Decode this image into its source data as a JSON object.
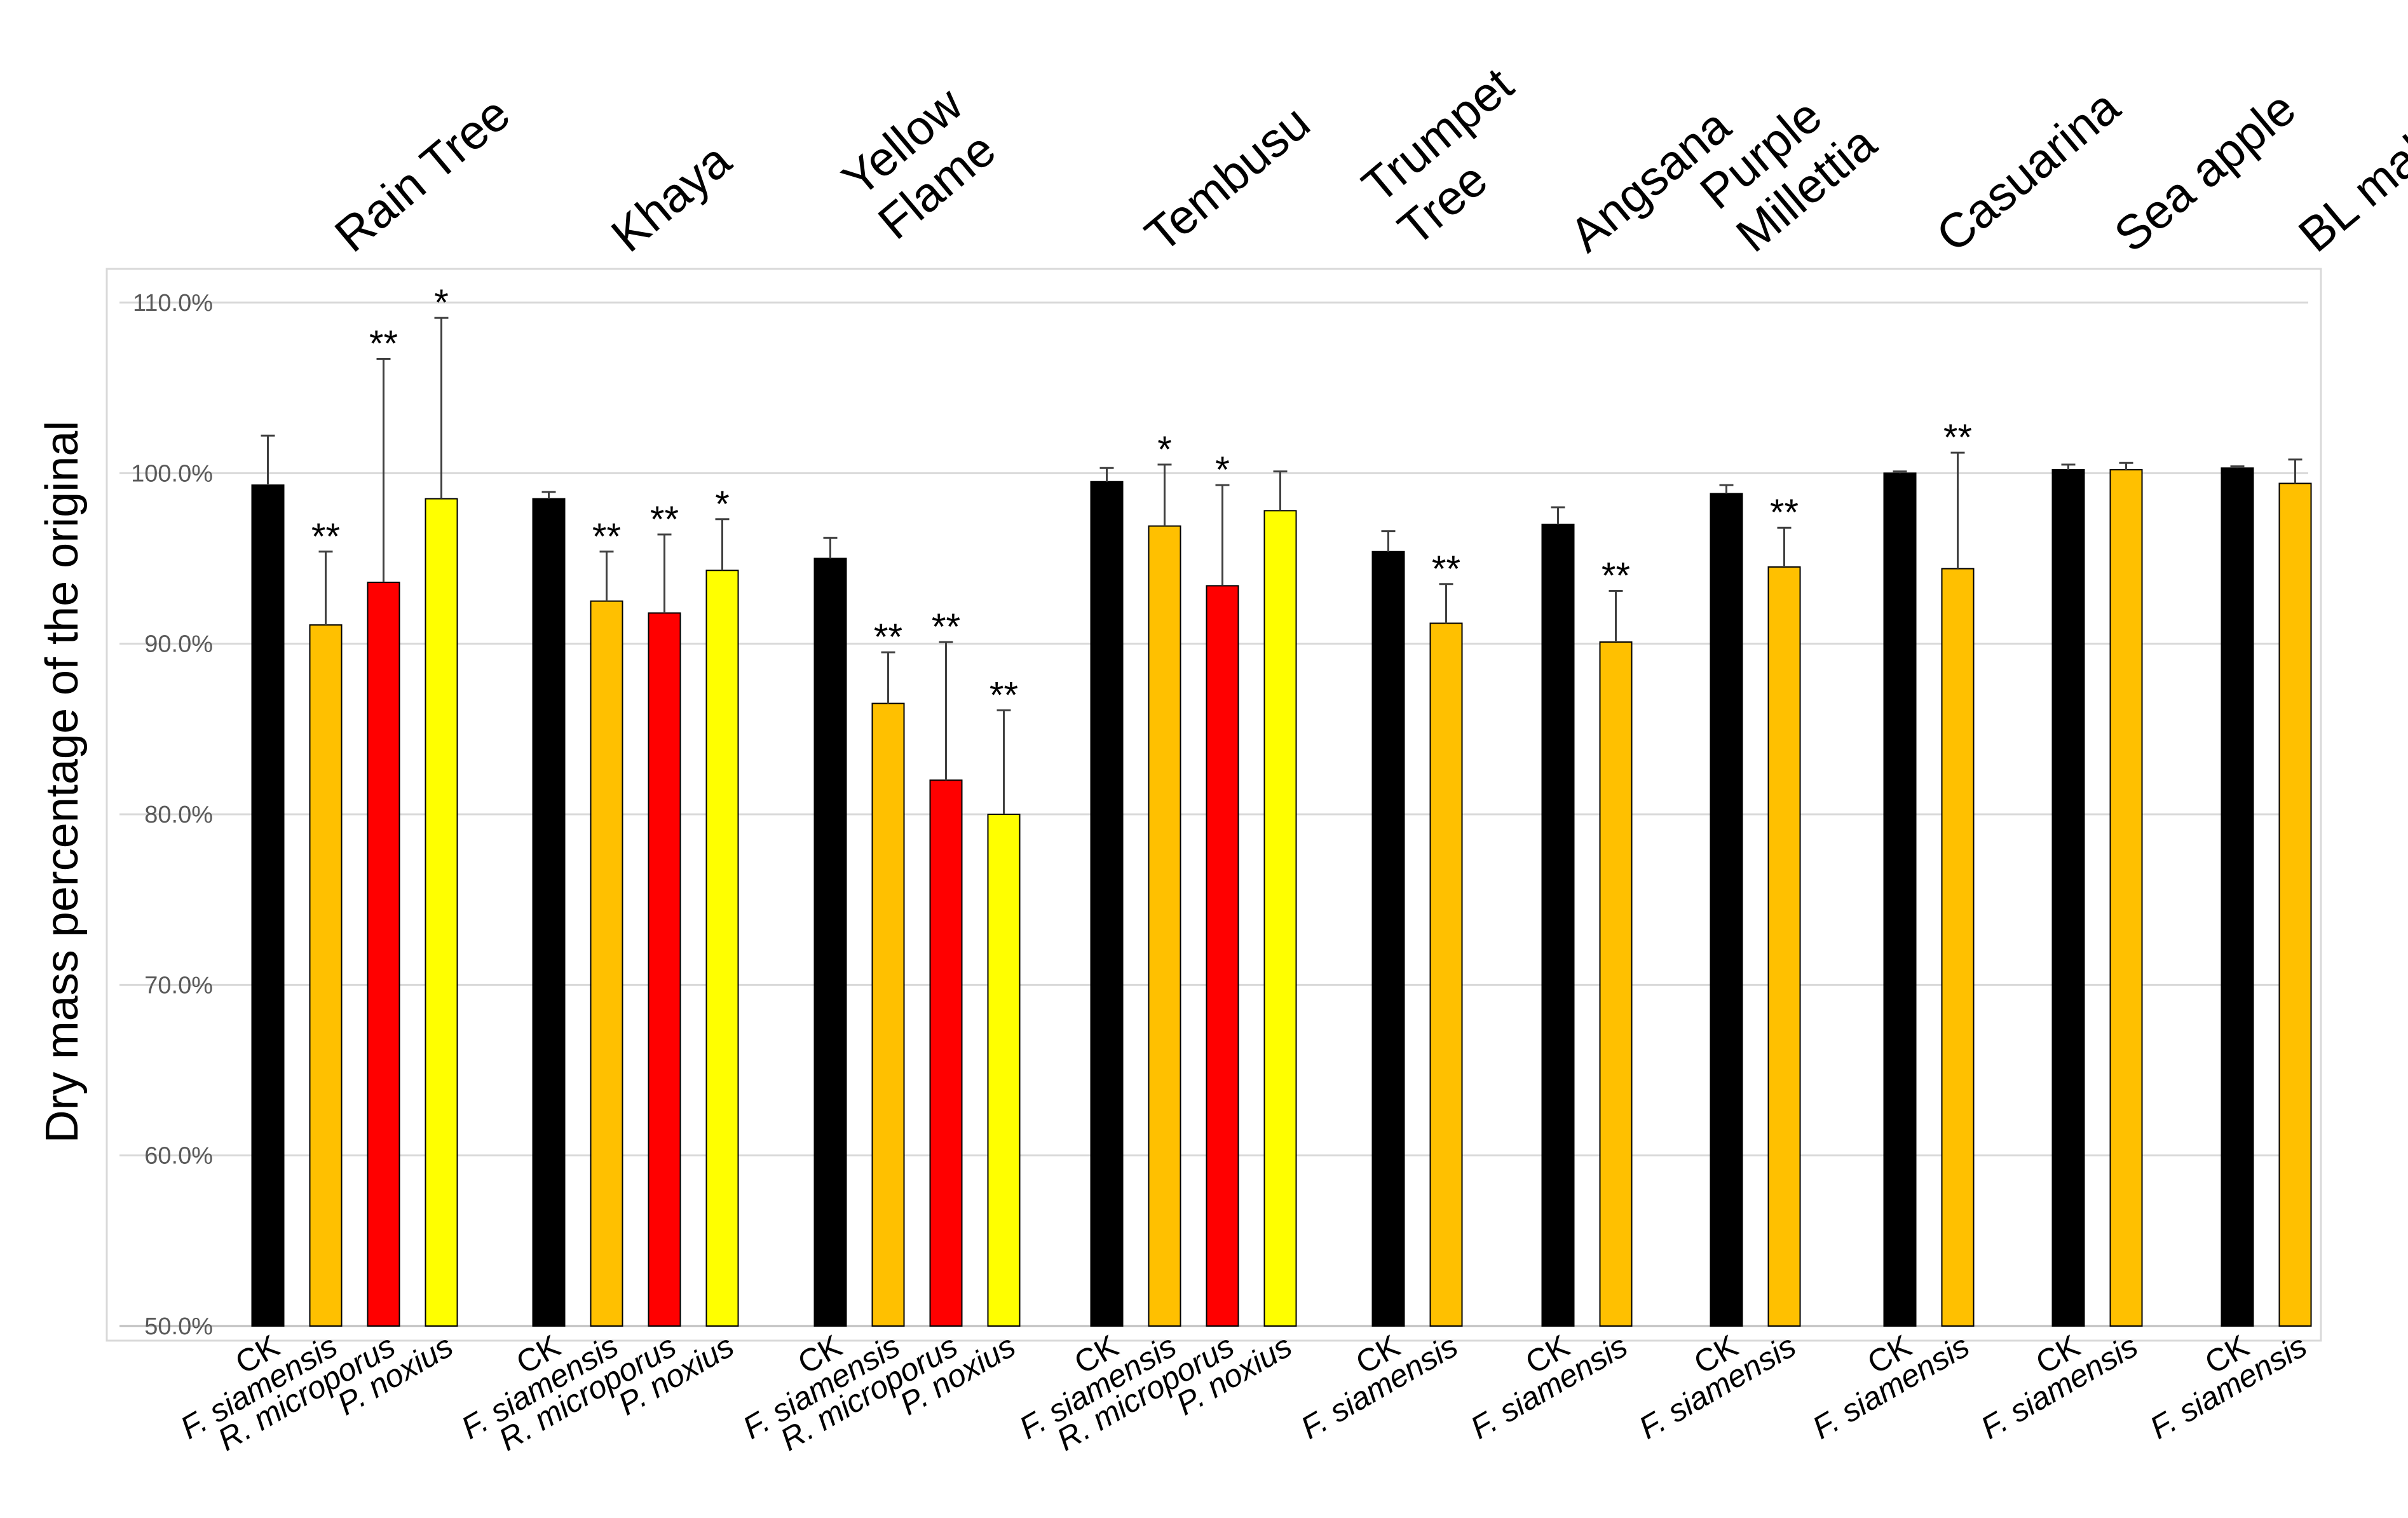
{
  "chart_data": {
    "type": "bar",
    "ylabel": "Dry mass percentage of the original",
    "ylim": [
      50,
      110
    ],
    "yticks": [
      "50.0%",
      "60.0%",
      "70.0%",
      "80.0%",
      "90.0%",
      "100.0%",
      "110.0%"
    ],
    "grid": true,
    "treatment_colors": {
      "CK": "#000000",
      "F. siamensis": "#FFC000",
      "R. microporus": "#FF0000",
      "P. noxius": "#FFFF00"
    },
    "groups": [
      {
        "name": [
          "Rain Tree"
        ],
        "bars": [
          {
            "label": "CK",
            "value": 99.3,
            "error": 2.9,
            "sig": ""
          },
          {
            "label": "F. siamensis",
            "value": 91.1,
            "error": 4.3,
            "sig": "**"
          },
          {
            "label": "R. microporus",
            "value": 93.6,
            "error": 13.1,
            "sig": "**"
          },
          {
            "label": "P. noxius",
            "value": 98.5,
            "error": 10.6,
            "sig": "*"
          }
        ]
      },
      {
        "name": [
          "Khaya"
        ],
        "bars": [
          {
            "label": "CK",
            "value": 98.5,
            "error": 0.4,
            "sig": ""
          },
          {
            "label": "F. siamensis",
            "value": 92.5,
            "error": 2.9,
            "sig": "**"
          },
          {
            "label": "R. microporus",
            "value": 91.8,
            "error": 4.6,
            "sig": "**"
          },
          {
            "label": "P. noxius",
            "value": 94.3,
            "error": 3.0,
            "sig": "*"
          }
        ]
      },
      {
        "name": [
          "Yellow",
          "Flame"
        ],
        "bars": [
          {
            "label": "CK",
            "value": 95.0,
            "error": 1.2,
            "sig": ""
          },
          {
            "label": "F. siamensis",
            "value": 86.5,
            "error": 3.0,
            "sig": "**"
          },
          {
            "label": "R. microporus",
            "value": 82.0,
            "error": 8.1,
            "sig": "**"
          },
          {
            "label": "P. noxius",
            "value": 80.0,
            "error": 6.1,
            "sig": "**"
          }
        ]
      },
      {
        "name": [
          "Tembusu"
        ],
        "bars": [
          {
            "label": "CK",
            "value": 99.5,
            "error": 0.8,
            "sig": ""
          },
          {
            "label": "F. siamensis",
            "value": 96.9,
            "error": 3.6,
            "sig": "*"
          },
          {
            "label": "R. microporus",
            "value": 93.4,
            "error": 5.9,
            "sig": "*"
          },
          {
            "label": "P. noxius",
            "value": 97.8,
            "error": 2.3,
            "sig": ""
          }
        ]
      },
      {
        "name": [
          "Trumpet",
          "Tree"
        ],
        "bars": [
          {
            "label": "CK",
            "value": 95.4,
            "error": 1.2,
            "sig": ""
          },
          {
            "label": "F. siamensis",
            "value": 91.2,
            "error": 2.3,
            "sig": "**"
          }
        ]
      },
      {
        "name": [
          "Angsana"
        ],
        "bars": [
          {
            "label": "CK",
            "value": 97.0,
            "error": 1.0,
            "sig": ""
          },
          {
            "label": "F. siamensis",
            "value": 90.1,
            "error": 3.0,
            "sig": "**"
          }
        ]
      },
      {
        "name": [
          "Purple",
          "Millettia"
        ],
        "bars": [
          {
            "label": "CK",
            "value": 98.8,
            "error": 0.5,
            "sig": ""
          },
          {
            "label": "F. siamensis",
            "value": 94.5,
            "error": 2.3,
            "sig": "**"
          }
        ]
      },
      {
        "name": [
          "Casuarina"
        ],
        "bars": [
          {
            "label": "CK",
            "value": 100.0,
            "error": 0.1,
            "sig": ""
          },
          {
            "label": "F. siamensis",
            "value": 94.4,
            "error": 6.8,
            "sig": "**"
          }
        ]
      },
      {
        "name": [
          "Sea apple"
        ],
        "bars": [
          {
            "label": "CK",
            "value": 100.2,
            "error": 0.3,
            "sig": ""
          },
          {
            "label": "F. siamensis",
            "value": 100.2,
            "error": 0.4,
            "sig": ""
          }
        ]
      },
      {
        "name": [
          "BL mahogany"
        ],
        "bars": [
          {
            "label": "CK",
            "value": 100.3,
            "error": 0.1,
            "sig": ""
          },
          {
            "label": "F. siamensis",
            "value": 99.4,
            "error": 1.4,
            "sig": ""
          }
        ]
      }
    ]
  }
}
